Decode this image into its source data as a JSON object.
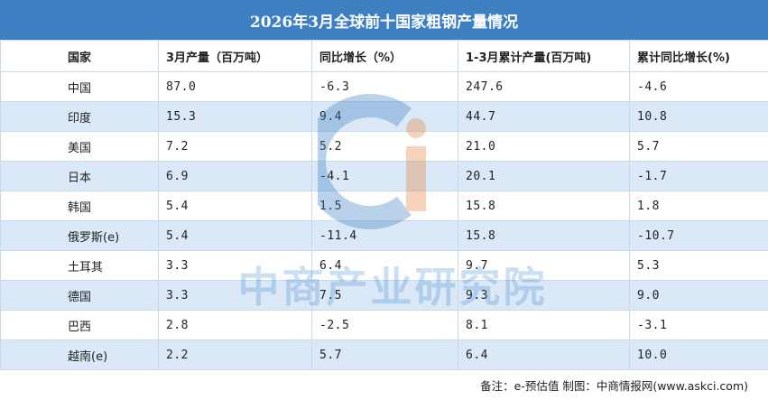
{
  "title": "2026年3月全球前十国家粗钢产量情况",
  "headers": [
    "国家",
    "3月产量（百万吨）",
    "同比增长（%）",
    "1-3月累计产量(百万吨)",
    "累计同比增长(%)"
  ],
  "rows": [
    {
      "country": "中国",
      "march": "87.0",
      "yoy": "-6.3",
      "ytd": "247.6",
      "ytd_yoy": "-4.6"
    },
    {
      "country": "印度",
      "march": "15.3",
      "yoy": "9.4",
      "ytd": "44.7",
      "ytd_yoy": "10.8"
    },
    {
      "country": "美国",
      "march": "7.2",
      "yoy": "5.2",
      "ytd": "21.0",
      "ytd_yoy": "5.7"
    },
    {
      "country": "日本",
      "march": "6.9",
      "yoy": "-4.1",
      "ytd": "20.1",
      "ytd_yoy": "-1.7"
    },
    {
      "country": "韩国",
      "march": "5.4",
      "yoy": "1.5",
      "ytd": "15.8",
      "ytd_yoy": "1.8"
    },
    {
      "country": "俄罗斯(e)",
      "march": "5.4",
      "yoy": "-11.4",
      "ytd": "15.8",
      "ytd_yoy": "-10.7"
    },
    {
      "country": "土耳其",
      "march": "3.3",
      "yoy": "6.4",
      "ytd": "9.7",
      "ytd_yoy": "5.3"
    },
    {
      "country": "德国",
      "march": "3.3",
      "yoy": "7.5",
      "ytd": "9.3",
      "ytd_yoy": "9.0"
    },
    {
      "country": "巴西",
      "march": "2.8",
      "yoy": "-2.5",
      "ytd": "8.1",
      "ytd_yoy": "-3.1"
    },
    {
      "country": "越南(e)",
      "march": "2.2",
      "yoy": "5.7",
      "ytd": "6.4",
      "ytd_yoy": "10.0"
    }
  ],
  "footnote": "备注：e-预估值  制图：中商情报网(www.askci.com)",
  "watermark": "中商产业研究院",
  "colors": {
    "title_bg": "#3d7fc1",
    "stripe": "#dae8f7",
    "border": "#c9d9ec",
    "logo_blue": "#3d7fc1",
    "logo_orange": "#e8843c"
  }
}
